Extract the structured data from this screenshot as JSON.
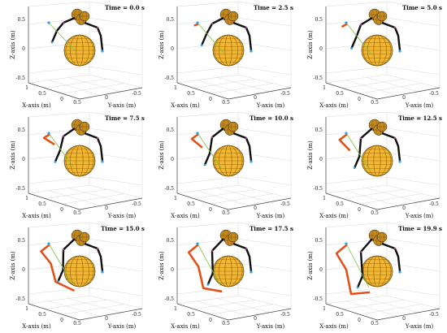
{
  "figure": {
    "x_axis_label": "X-axis (m)",
    "y_axis_label": "Y-axis (m)",
    "z_axis_label": "Z-axis (m)",
    "time_prefix": "Time = ",
    "time_unit": " s",
    "z_ticks": [
      "0.5",
      "0",
      "-0.5"
    ],
    "x_ticks": [
      "1",
      "0.5",
      "0"
    ],
    "y_ticks": [
      "0.5",
      "0",
      "-0.5"
    ]
  },
  "panels": [
    {
      "time": "0.0",
      "trail": 0.0
    },
    {
      "time": "2.5",
      "trail": 0.12
    },
    {
      "time": "5.0",
      "trail": 0.25
    },
    {
      "time": "7.5",
      "trail": 0.38
    },
    {
      "time": "10.0",
      "trail": 0.5
    },
    {
      "time": "12.5",
      "trail": 0.62
    },
    {
      "time": "15.0",
      "trail": 0.75
    },
    {
      "time": "17.5",
      "trail": 0.88
    },
    {
      "time": "19.9",
      "trail": 1.0
    }
  ],
  "colors": {
    "sphere": "#f2b632",
    "sphere_grid": "#7a5200",
    "arm": "#111111",
    "trail": "#e0521a",
    "tether": "#7cc33a",
    "joint_blue": "#2aa3e0",
    "joint_magenta": "#e03bbd",
    "grid": "#d8d8d8"
  }
}
